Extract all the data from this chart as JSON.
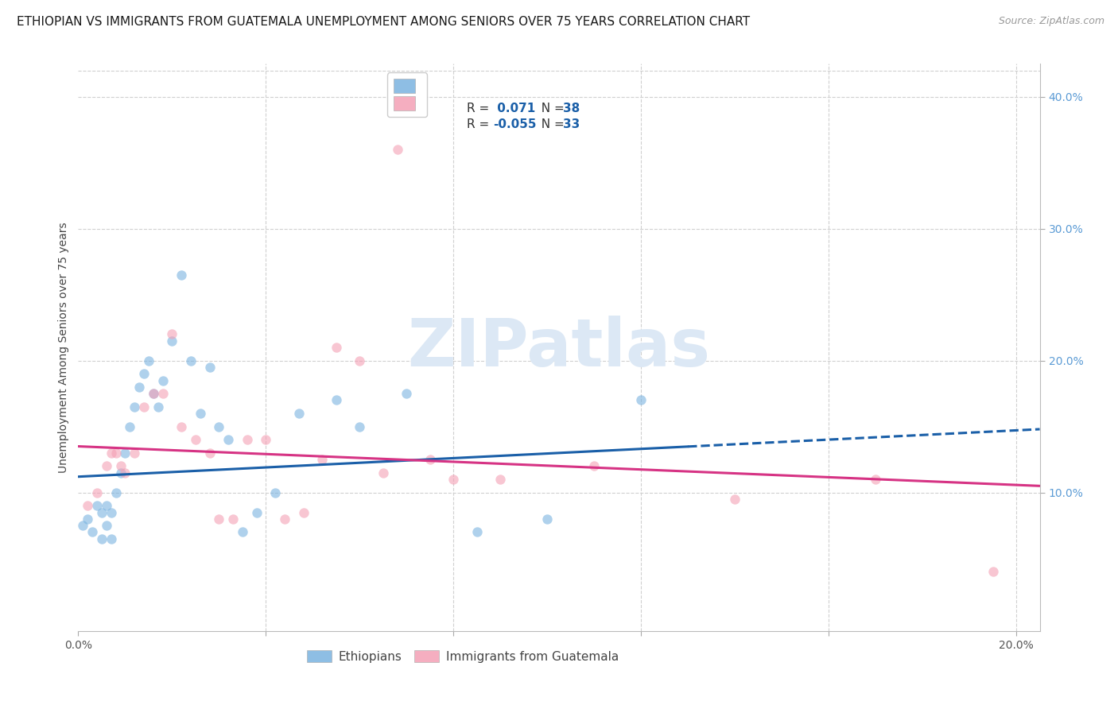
{
  "title": "ETHIOPIAN VS IMMIGRANTS FROM GUATEMALA UNEMPLOYMENT AMONG SENIORS OVER 75 YEARS CORRELATION CHART",
  "source": "Source: ZipAtlas.com",
  "ylabel": "Unemployment Among Seniors over 75 years",
  "xlim": [
    0.0,
    0.205
  ],
  "ylim": [
    -0.005,
    0.425
  ],
  "plot_ylim": [
    0.0,
    0.42
  ],
  "ethiopians_x": [
    0.001,
    0.002,
    0.003,
    0.004,
    0.005,
    0.005,
    0.006,
    0.006,
    0.007,
    0.007,
    0.008,
    0.009,
    0.01,
    0.011,
    0.012,
    0.013,
    0.014,
    0.015,
    0.016,
    0.017,
    0.018,
    0.02,
    0.022,
    0.024,
    0.026,
    0.028,
    0.03,
    0.032,
    0.035,
    0.038,
    0.042,
    0.047,
    0.055,
    0.06,
    0.07,
    0.085,
    0.1,
    0.12
  ],
  "ethiopians_y": [
    0.075,
    0.08,
    0.07,
    0.09,
    0.085,
    0.065,
    0.09,
    0.075,
    0.085,
    0.065,
    0.1,
    0.115,
    0.13,
    0.15,
    0.165,
    0.18,
    0.19,
    0.2,
    0.175,
    0.165,
    0.185,
    0.215,
    0.265,
    0.2,
    0.16,
    0.195,
    0.15,
    0.14,
    0.07,
    0.085,
    0.1,
    0.16,
    0.17,
    0.15,
    0.175,
    0.07,
    0.08,
    0.17
  ],
  "guatemala_x": [
    0.002,
    0.004,
    0.006,
    0.007,
    0.008,
    0.009,
    0.01,
    0.012,
    0.014,
    0.016,
    0.018,
    0.02,
    0.022,
    0.025,
    0.028,
    0.03,
    0.033,
    0.036,
    0.04,
    0.044,
    0.048,
    0.055,
    0.06,
    0.068,
    0.075,
    0.09,
    0.11,
    0.14,
    0.17,
    0.195,
    0.052,
    0.065,
    0.08
  ],
  "guatemala_y": [
    0.09,
    0.1,
    0.12,
    0.13,
    0.13,
    0.12,
    0.115,
    0.13,
    0.165,
    0.175,
    0.175,
    0.22,
    0.15,
    0.14,
    0.13,
    0.08,
    0.08,
    0.14,
    0.14,
    0.08,
    0.085,
    0.21,
    0.2,
    0.36,
    0.125,
    0.11,
    0.12,
    0.095,
    0.11,
    0.04,
    0.125,
    0.115,
    0.11
  ],
  "trend_eth_x0": 0.0,
  "trend_eth_y0": 0.112,
  "trend_eth_x1": 0.205,
  "trend_eth_y1": 0.148,
  "trend_eth_solid_end_x": 0.13,
  "trend_guat_x0": 0.0,
  "trend_guat_y0": 0.135,
  "trend_guat_x1": 0.205,
  "trend_guat_y1": 0.105,
  "ethiopian_color": "#7ab3e0",
  "guatemala_color": "#f4a0b5",
  "trend_eth_color": "#1a5fa8",
  "trend_guat_color": "#d63384",
  "watermark_text": "ZIPatlas",
  "watermark_color": "#dce8f5",
  "grid_color": "#d0d0d0",
  "bg_color": "#ffffff",
  "right_tick_color": "#5b9bd5",
  "title_fontsize": 11,
  "tick_fontsize": 10,
  "scatter_size": 80,
  "scatter_alpha": 0.6,
  "R_eth": "0.071",
  "N_eth": "38",
  "R_guat": "-0.055",
  "N_guat": "33"
}
